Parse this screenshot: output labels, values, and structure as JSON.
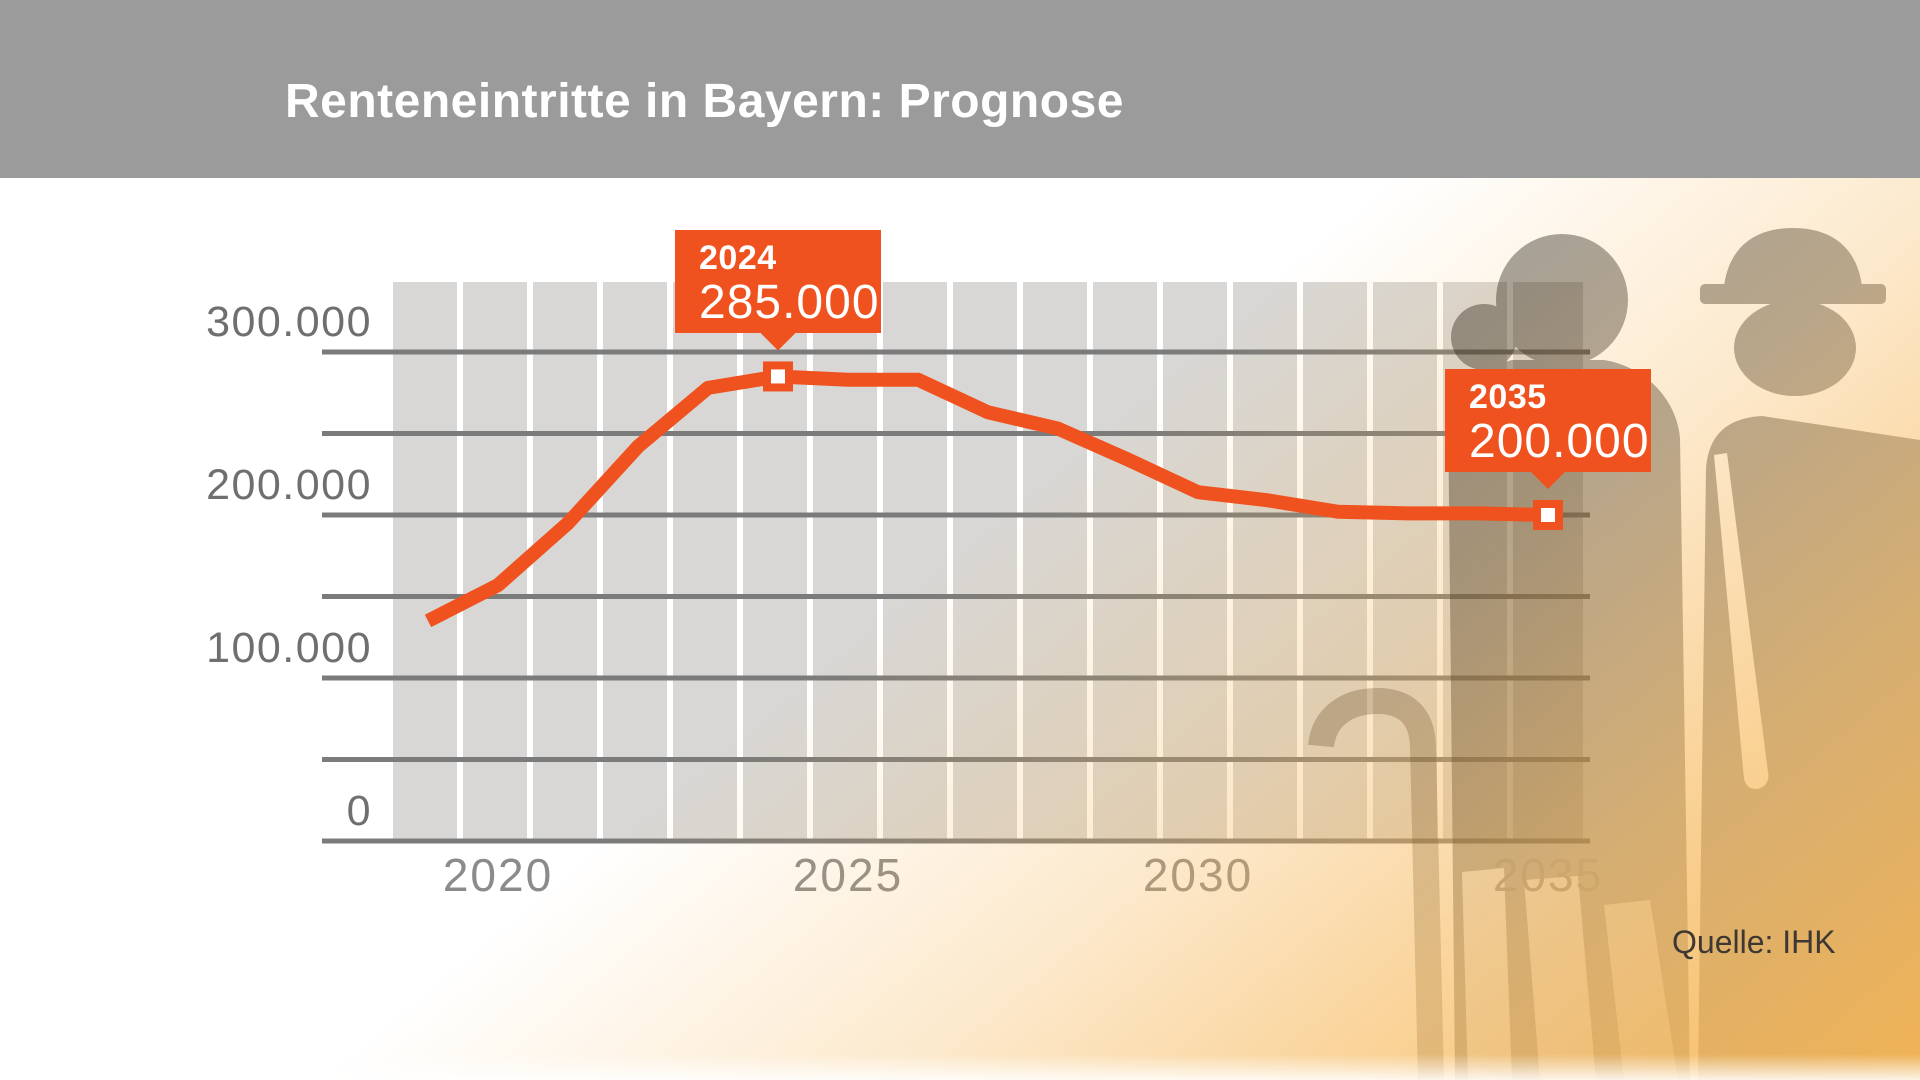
{
  "header": {
    "title": "Renteneintritte in Bayern: Prognose"
  },
  "source": {
    "label": "Quelle: IHK"
  },
  "colors": {
    "accent_orange": "#f0521f",
    "header_gray": "#9b9b9b",
    "plot_column_gray": "#d8d7d5",
    "gridline_gray": "#7b7b7b",
    "ytick_text": "#6f6f6f",
    "xtick_text": "#8b8b8b",
    "gradient_orange": "#f6b758"
  },
  "chart_data": {
    "type": "line",
    "title": "Renteneintritte in Bayern: Prognose",
    "xlabel": "",
    "ylabel": "",
    "grid": true,
    "legend_position": "none",
    "line_color": "#f0521f",
    "xlim_years": [
      2018.5,
      2035.5
    ],
    "ylim": [
      0,
      343000
    ],
    "x": [
      2019,
      2020,
      2021,
      2022,
      2023,
      2024,
      2025,
      2026,
      2027,
      2028,
      2029,
      2030,
      2031,
      2032,
      2033,
      2034,
      2035
    ],
    "series": [
      {
        "name": "Renteneintritte in Bayern (Prognose)",
        "values": [
          135000,
          157000,
          195000,
          242000,
          278000,
          285000,
          283000,
          283000,
          263000,
          253000,
          234000,
          214000,
          209000,
          202000,
          201000,
          201000,
          200000
        ]
      }
    ],
    "xticks": [
      2020,
      2025,
      2030,
      2035
    ],
    "xtick_labels": [
      "2020",
      "2025",
      "2030",
      "2035"
    ],
    "ytick_values": [
      0,
      50000,
      100000,
      150000,
      200000,
      250000,
      300000
    ],
    "ytick_labels": [
      "0",
      "",
      "100.000",
      "",
      "200.000",
      "",
      "300.000"
    ],
    "annotations": [
      {
        "year": 2024,
        "value": 285000,
        "year_label": "2024",
        "value_label": "285.000"
      },
      {
        "year": 2035,
        "value": 200000,
        "year_label": "2035",
        "value_label": "200.000"
      }
    ]
  }
}
